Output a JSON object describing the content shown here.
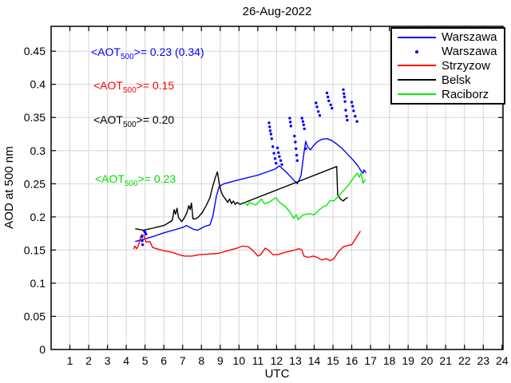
{
  "figure": {
    "title": "26-Aug-2022",
    "xlabel": "UTC",
    "ylabel": "AOD at 500 nm",
    "background": "#ffffff",
    "grid_color": "#d6d6d6",
    "axis_color": "#000000"
  },
  "annotations": [
    {
      "prefix": "<AOT",
      "sub": "500",
      "suffix": ">= 0.23 (0.34)",
      "color": "#0000ff"
    },
    {
      "prefix": "<AOT",
      "sub": "500",
      "suffix": ">= 0.15",
      "color": "#ff0000"
    },
    {
      "prefix": "<AOT",
      "sub": "500",
      "suffix": ">= 0.20",
      "color": "#000000"
    },
    {
      "prefix": "<AOT",
      "sub": "500",
      "suffix": ">= 0.23",
      "color": "#00dd00"
    }
  ],
  "chart_data": {
    "type": "line",
    "title": "26-Aug-2022",
    "xlabel": "UTC",
    "ylabel": "AOD at 500 nm",
    "xlim": [
      0,
      24.05
    ],
    "ylim": [
      0,
      0.4875
    ],
    "xticks": [
      1,
      2,
      3,
      4,
      5,
      6,
      7,
      8,
      9,
      10,
      11,
      12,
      13,
      14,
      15,
      16,
      17,
      18,
      19,
      20,
      21,
      22,
      23,
      24
    ],
    "yticks": [
      0,
      0.05,
      0.1,
      0.15,
      0.2,
      0.25,
      0.3,
      0.35,
      0.4,
      0.45
    ],
    "grid": true,
    "legend_position": "top-right",
    "legend_entries": [
      "Warszawa",
      "Warszawa",
      "Strzyzow",
      "Belsk",
      "Raciborz"
    ],
    "series": [
      {
        "name": "Warszawa",
        "color": "#0000ff",
        "style": "line",
        "points": [
          [
            4.5,
            0.163
          ],
          [
            5.0,
            0.167
          ],
          [
            5.5,
            0.171
          ],
          [
            6.0,
            0.176
          ],
          [
            6.5,
            0.18
          ],
          [
            7.0,
            0.184
          ],
          [
            7.2,
            0.187
          ],
          [
            7.4,
            0.184
          ],
          [
            7.6,
            0.181
          ],
          [
            7.8,
            0.18
          ],
          [
            8.0,
            0.183
          ],
          [
            8.2,
            0.186
          ],
          [
            8.45,
            0.188
          ],
          [
            8.6,
            0.2
          ],
          [
            8.8,
            0.232
          ],
          [
            8.95,
            0.246
          ],
          [
            9.2,
            0.25
          ],
          [
            10.0,
            0.256
          ],
          [
            11.0,
            0.263
          ],
          [
            11.9,
            0.272
          ],
          [
            12.15,
            0.277
          ],
          [
            12.5,
            0.268
          ],
          [
            12.8,
            0.259
          ],
          [
            13.1,
            0.25
          ],
          [
            13.3,
            0.262
          ],
          [
            13.45,
            0.295
          ],
          [
            13.55,
            0.314
          ],
          [
            13.65,
            0.306
          ],
          [
            13.8,
            0.301
          ],
          [
            13.95,
            0.307
          ],
          [
            14.15,
            0.313
          ],
          [
            14.4,
            0.317
          ],
          [
            14.7,
            0.318
          ],
          [
            14.95,
            0.315
          ],
          [
            15.2,
            0.31
          ],
          [
            15.5,
            0.303
          ],
          [
            15.8,
            0.294
          ],
          [
            16.1,
            0.285
          ],
          [
            16.35,
            0.276
          ],
          [
            16.5,
            0.269
          ],
          [
            16.6,
            0.266
          ],
          [
            16.65,
            0.271
          ],
          [
            16.75,
            0.267
          ]
        ]
      },
      {
        "name": "Warszawa",
        "color": "#0000ff",
        "style": "dots",
        "points": [
          [
            4.83,
            0.17
          ],
          [
            4.85,
            0.164
          ],
          [
            4.87,
            0.158
          ],
          [
            4.95,
            0.179
          ],
          [
            5.0,
            0.177
          ],
          [
            5.05,
            0.174
          ],
          [
            11.6,
            0.342
          ],
          [
            11.63,
            0.336
          ],
          [
            11.66,
            0.33
          ],
          [
            11.7,
            0.325
          ],
          [
            11.74,
            0.318
          ],
          [
            11.8,
            0.306
          ],
          [
            11.86,
            0.296
          ],
          [
            11.92,
            0.288
          ],
          [
            11.97,
            0.281
          ],
          [
            12.05,
            0.304
          ],
          [
            12.1,
            0.297
          ],
          [
            12.15,
            0.291
          ],
          [
            12.22,
            0.285
          ],
          [
            12.28,
            0.279
          ],
          [
            12.7,
            0.349
          ],
          [
            12.73,
            0.343
          ],
          [
            12.76,
            0.337
          ],
          [
            12.95,
            0.322
          ],
          [
            13.0,
            0.313
          ],
          [
            13.03,
            0.303
          ],
          [
            13.07,
            0.293
          ],
          [
            13.1,
            0.285
          ],
          [
            13.35,
            0.349
          ],
          [
            13.4,
            0.344
          ],
          [
            13.44,
            0.339
          ],
          [
            13.48,
            0.333
          ],
          [
            13.55,
            0.303
          ],
          [
            14.1,
            0.372
          ],
          [
            14.15,
            0.366
          ],
          [
            14.22,
            0.359
          ],
          [
            14.3,
            0.353
          ],
          [
            14.68,
            0.387
          ],
          [
            14.73,
            0.381
          ],
          [
            14.78,
            0.375
          ],
          [
            14.88,
            0.369
          ],
          [
            14.95,
            0.364
          ],
          [
            15.55,
            0.392
          ],
          [
            15.58,
            0.386
          ],
          [
            15.61,
            0.381
          ],
          [
            15.64,
            0.374
          ],
          [
            15.68,
            0.361
          ],
          [
            15.72,
            0.352
          ],
          [
            15.76,
            0.346
          ],
          [
            16.0,
            0.373
          ],
          [
            16.05,
            0.367
          ],
          [
            16.1,
            0.36
          ],
          [
            16.18,
            0.352
          ],
          [
            16.28,
            0.344
          ]
        ]
      },
      {
        "name": "Strzyzow",
        "color": "#ff0000",
        "style": "line",
        "points": [
          [
            4.4,
            0.152
          ],
          [
            4.45,
            0.156
          ],
          [
            4.55,
            0.152
          ],
          [
            4.65,
            0.157
          ],
          [
            4.8,
            0.173
          ],
          [
            4.95,
            0.172
          ],
          [
            5.05,
            0.162
          ],
          [
            5.25,
            0.163
          ],
          [
            5.4,
            0.154
          ],
          [
            5.6,
            0.152
          ],
          [
            6.0,
            0.149
          ],
          [
            6.4,
            0.147
          ],
          [
            6.8,
            0.143
          ],
          [
            7.1,
            0.141
          ],
          [
            7.5,
            0.141
          ],
          [
            7.9,
            0.143
          ],
          [
            8.4,
            0.144
          ],
          [
            8.9,
            0.145
          ],
          [
            9.4,
            0.149
          ],
          [
            9.9,
            0.153
          ],
          [
            10.2,
            0.156
          ],
          [
            10.5,
            0.155
          ],
          [
            10.75,
            0.149
          ],
          [
            11.0,
            0.141
          ],
          [
            11.15,
            0.143
          ],
          [
            11.4,
            0.153
          ],
          [
            11.6,
            0.149
          ],
          [
            11.8,
            0.143
          ],
          [
            12.05,
            0.143
          ],
          [
            12.5,
            0.147
          ],
          [
            12.95,
            0.15
          ],
          [
            13.2,
            0.152
          ],
          [
            13.35,
            0.15
          ],
          [
            13.45,
            0.141
          ],
          [
            13.7,
            0.139
          ],
          [
            13.95,
            0.141
          ],
          [
            14.15,
            0.139
          ],
          [
            14.4,
            0.135
          ],
          [
            14.65,
            0.137
          ],
          [
            14.85,
            0.134
          ],
          [
            15.05,
            0.137
          ],
          [
            15.3,
            0.148
          ],
          [
            15.55,
            0.155
          ],
          [
            15.8,
            0.157
          ],
          [
            16.0,
            0.158
          ],
          [
            16.2,
            0.167
          ],
          [
            16.45,
            0.178
          ]
        ]
      },
      {
        "name": "Belsk",
        "color": "#000000",
        "style": "line",
        "points": [
          [
            4.5,
            0.182
          ],
          [
            4.7,
            0.181
          ],
          [
            4.9,
            0.18
          ],
          [
            5.1,
            0.181
          ],
          [
            5.4,
            0.183
          ],
          [
            5.7,
            0.185
          ],
          [
            6.0,
            0.187
          ],
          [
            6.3,
            0.192
          ],
          [
            6.45,
            0.195
          ],
          [
            6.55,
            0.211
          ],
          [
            6.62,
            0.204
          ],
          [
            6.7,
            0.213
          ],
          [
            6.78,
            0.199
          ],
          [
            6.95,
            0.193
          ],
          [
            7.1,
            0.199
          ],
          [
            7.25,
            0.208
          ],
          [
            7.33,
            0.217
          ],
          [
            7.4,
            0.211
          ],
          [
            7.47,
            0.221
          ],
          [
            7.55,
            0.197
          ],
          [
            7.7,
            0.197
          ],
          [
            7.85,
            0.2
          ],
          [
            8.05,
            0.207
          ],
          [
            8.25,
            0.217
          ],
          [
            8.45,
            0.229
          ],
          [
            8.6,
            0.246
          ],
          [
            8.75,
            0.26
          ],
          [
            8.85,
            0.268
          ],
          [
            8.95,
            0.25
          ],
          [
            9.05,
            0.238
          ],
          [
            9.15,
            0.232
          ],
          [
            9.3,
            0.226
          ],
          [
            9.4,
            0.222
          ],
          [
            9.5,
            0.227
          ],
          [
            9.6,
            0.22
          ],
          [
            9.7,
            0.224
          ],
          [
            9.8,
            0.219
          ],
          [
            9.9,
            0.222
          ],
          [
            10.05,
            0.219
          ],
          [
            15.2,
            0.276
          ],
          [
            15.25,
            0.233
          ],
          [
            15.4,
            0.227
          ],
          [
            15.55,
            0.224
          ],
          [
            15.65,
            0.227
          ],
          [
            15.77,
            0.229
          ]
        ]
      },
      {
        "name": "Raciborz",
        "color": "#00ee00",
        "style": "line",
        "points": [
          [
            10.35,
            0.222
          ],
          [
            10.45,
            0.217
          ],
          [
            10.55,
            0.222
          ],
          [
            10.9,
            0.218
          ],
          [
            11.2,
            0.227
          ],
          [
            11.35,
            0.22
          ],
          [
            11.6,
            0.222
          ],
          [
            11.95,
            0.229
          ],
          [
            12.2,
            0.221
          ],
          [
            12.45,
            0.216
          ],
          [
            12.7,
            0.208
          ],
          [
            12.9,
            0.198
          ],
          [
            13.05,
            0.203
          ],
          [
            13.15,
            0.196
          ],
          [
            13.4,
            0.203
          ],
          [
            13.75,
            0.205
          ],
          [
            14.0,
            0.203
          ],
          [
            14.2,
            0.209
          ],
          [
            14.45,
            0.215
          ],
          [
            14.65,
            0.217
          ],
          [
            14.85,
            0.225
          ],
          [
            15.05,
            0.224
          ],
          [
            15.35,
            0.233
          ],
          [
            15.6,
            0.241
          ],
          [
            15.85,
            0.249
          ],
          [
            16.1,
            0.259
          ],
          [
            16.3,
            0.266
          ],
          [
            16.4,
            0.26
          ],
          [
            16.5,
            0.266
          ],
          [
            16.6,
            0.251
          ],
          [
            16.72,
            0.256
          ]
        ]
      }
    ]
  }
}
